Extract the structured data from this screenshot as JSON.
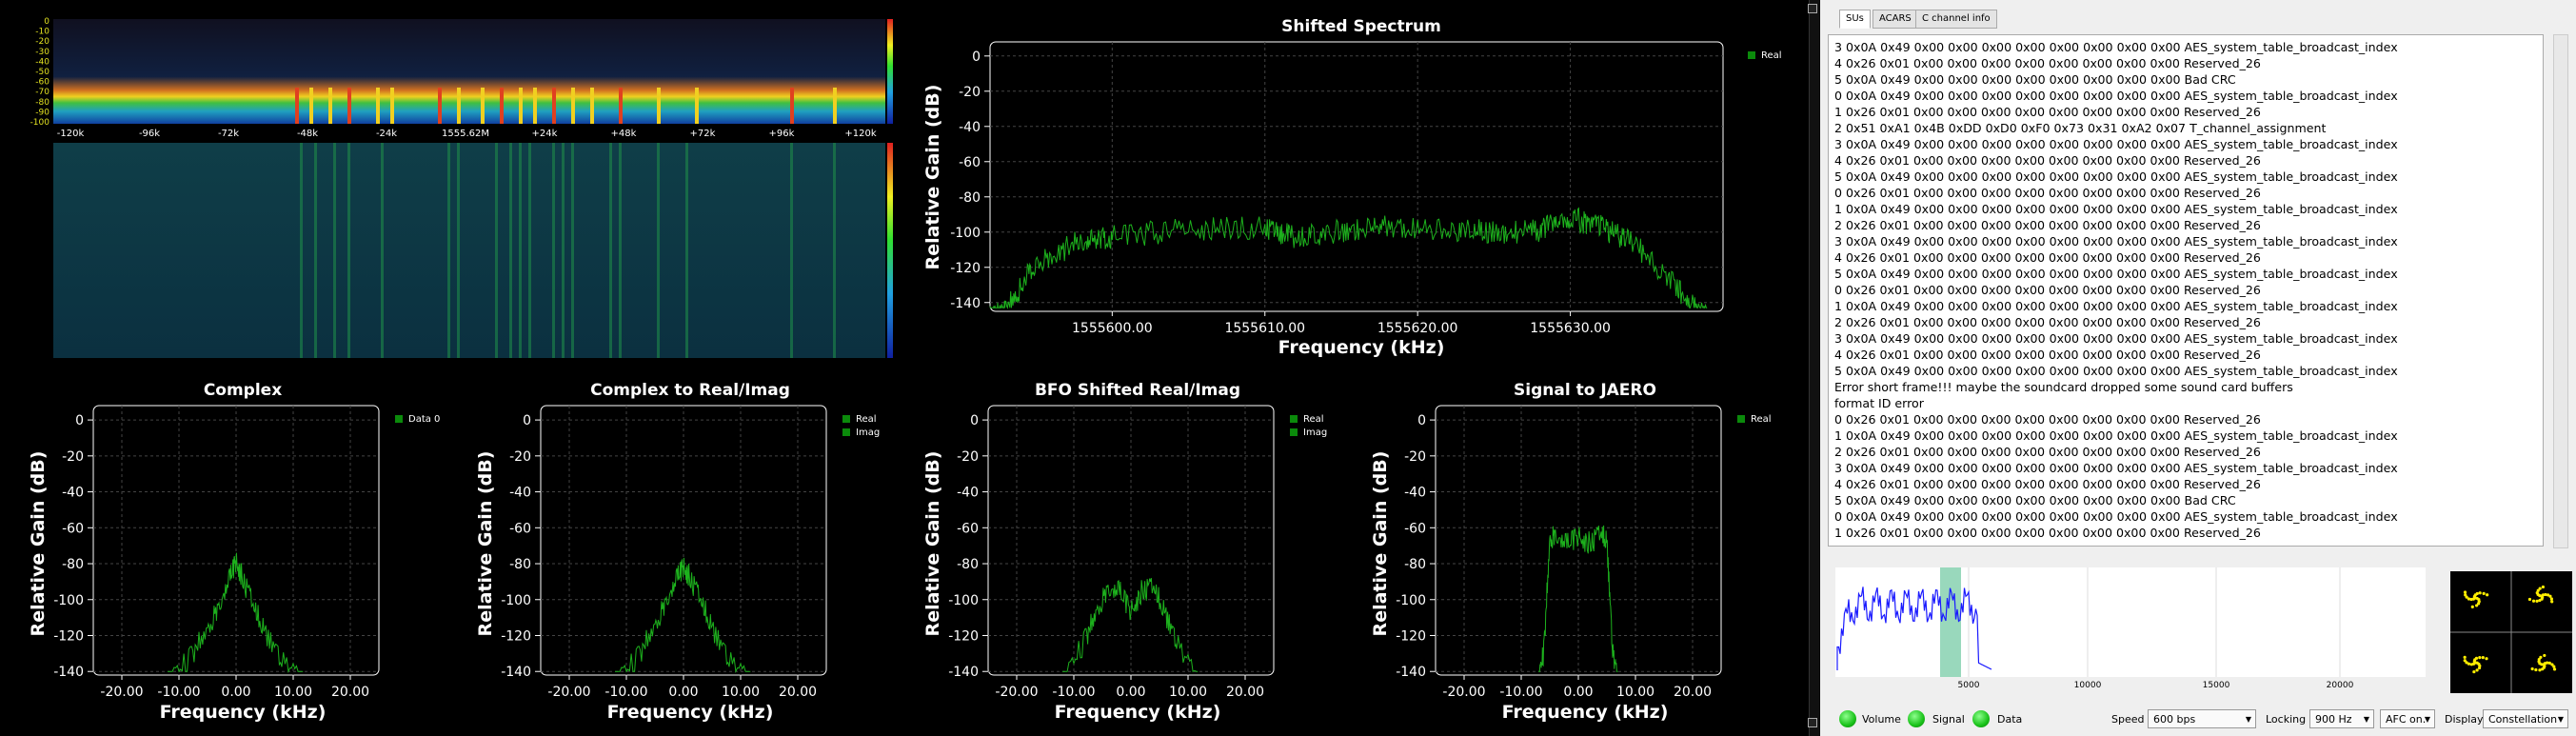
{
  "waterfall": {
    "db_ticks": [
      "0",
      "-10",
      "-20",
      "-30",
      "-40",
      "-50",
      "-60",
      "-70",
      "-80",
      "-90",
      "-100"
    ],
    "freq_ticks": [
      "-120k",
      "-96k",
      "-72k",
      "-48k",
      "-24k",
      "1555.62M",
      "+24k",
      "+48k",
      "+72k",
      "+96k",
      "+120k"
    ]
  },
  "shifted_spectrum": {
    "title": "Shifted Spectrum",
    "ylabel": "Relative Gain (dB)",
    "xlabel": "Frequency (kHz)",
    "legend": "Real",
    "yticks": [
      "0",
      "-20",
      "-40",
      "-60",
      "-80",
      "-100",
      "-120",
      "-140"
    ],
    "xticks": [
      "1555600.00",
      "1555610.00",
      "1555620.00",
      "1555630.00"
    ]
  },
  "small_plots": [
    {
      "title": "Complex",
      "ylabel": "Relative Gain (dB)",
      "xlabel": "Frequency (kHz)",
      "legend": [
        "Data 0"
      ]
    },
    {
      "title": "Complex to Real/Imag",
      "ylabel": "Relative Gain (dB)",
      "xlabel": "Frequency (kHz)",
      "legend": [
        "Real",
        "Imag"
      ]
    },
    {
      "title": "BFO Shifted Real/Imag",
      "ylabel": "Relative Gain (dB)",
      "xlabel": "Frequency (kHz)",
      "legend": [
        "Real",
        "Imag"
      ]
    },
    {
      "title": "Signal to JAERO",
      "ylabel": "Relative Gain (dB)",
      "xlabel": "Frequency (kHz)",
      "legend": [
        "Real"
      ]
    }
  ],
  "small_yticks": [
    "0",
    "-20",
    "-40",
    "-60",
    "-80",
    "-100",
    "-120",
    "-140"
  ],
  "small_xticks": [
    "-20.00",
    "-10.00",
    "0.00",
    "10.00",
    "20.00"
  ],
  "chart_data": [
    {
      "type": "line",
      "title": "Shifted Spectrum",
      "xlabel": "Frequency (kHz)",
      "ylabel": "Relative Gain (dB)",
      "xlim": [
        1555592,
        1555640
      ],
      "ylim": [
        -145,
        8
      ],
      "series": [
        {
          "name": "Real",
          "x": [
            1555592,
            1555593,
            1555595,
            1555598,
            1555600,
            1555605,
            1555610,
            1555612,
            1555615,
            1555618,
            1555622,
            1555625,
            1555628,
            1555630,
            1555632,
            1555634,
            1555637,
            1555639
          ],
          "values": [
            -142,
            -138,
            -110,
            -98,
            -95,
            -92,
            -90,
            -96,
            -92,
            -90,
            -91,
            -93,
            -92,
            -85,
            -90,
            -98,
            -125,
            -142
          ]
        }
      ]
    },
    {
      "type": "line",
      "title": "Complex",
      "xlim": [
        -25,
        25
      ],
      "ylim": [
        -142,
        8
      ],
      "series": [
        {
          "name": "Data 0",
          "x": [
            -12,
            -8,
            -5,
            -3,
            -1,
            0,
            1,
            3,
            5,
            8,
            12
          ],
          "values": [
            -140,
            -125,
            -110,
            -95,
            -80,
            -72,
            -80,
            -95,
            -110,
            -125,
            -140
          ]
        }
      ]
    },
    {
      "type": "line",
      "title": "Complex to Real/Imag",
      "xlim": [
        -25,
        25
      ],
      "ylim": [
        -142,
        8
      ],
      "series": [
        {
          "name": "Real",
          "x": [
            -12,
            -8,
            -5,
            -3,
            -1,
            0,
            1,
            3,
            5,
            8,
            12
          ],
          "values": [
            -140,
            -125,
            -108,
            -92,
            -80,
            -75,
            -80,
            -92,
            -108,
            -125,
            -140
          ]
        }
      ]
    },
    {
      "type": "line",
      "title": "BFO Shifted Real/Imag",
      "xlim": [
        -25,
        25
      ],
      "ylim": [
        -142,
        8
      ],
      "series": [
        {
          "name": "Real",
          "x": [
            -12,
            -8,
            -6,
            -4,
            -2,
            0,
            2,
            4,
            6,
            8,
            12
          ],
          "values": [
            -140,
            -115,
            -100,
            -85,
            -88,
            -100,
            -88,
            -85,
            -100,
            -115,
            -140
          ]
        }
      ]
    },
    {
      "type": "line",
      "title": "Signal to JAERO",
      "xlim": [
        -25,
        25
      ],
      "ylim": [
        -142,
        8
      ],
      "series": [
        {
          "name": "Real",
          "x": [
            -7,
            -6,
            -5,
            -4,
            -2,
            0,
            2,
            4,
            5,
            6,
            7
          ],
          "values": [
            -140,
            -120,
            -60,
            -55,
            -62,
            -58,
            -62,
            -55,
            -60,
            -120,
            -140
          ]
        }
      ]
    }
  ],
  "tabs": [
    "SUs",
    "ACARS",
    "C channel info"
  ],
  "log_lines": [
    "3 0x0A 0x49 0x00 0x00 0x00 0x00 0x00 0x00 0x00 0x00 AES_system_table_broadcast_index",
    "4 0x26 0x01 0x00 0x00 0x00 0x00 0x00 0x00 0x00 0x00 Reserved_26",
    "5 0x0A 0x49 0x00 0x00 0x00 0x00 0x00 0x00 0x00 0x00 Bad CRC",
    "0 0x0A 0x49 0x00 0x00 0x00 0x00 0x00 0x00 0x00 0x00 AES_system_table_broadcast_index",
    "1 0x26 0x01 0x00 0x00 0x00 0x00 0x00 0x00 0x00 0x00 Reserved_26",
    "2 0x51 0xA1 0x4B 0xDD 0xD0 0xF0 0x73 0x31 0xA2 0x07 T_channel_assignment",
    "3 0x0A 0x49 0x00 0x00 0x00 0x00 0x00 0x00 0x00 0x00 AES_system_table_broadcast_index",
    "4 0x26 0x01 0x00 0x00 0x00 0x00 0x00 0x00 0x00 0x00 Reserved_26",
    "5 0x0A 0x49 0x00 0x00 0x00 0x00 0x00 0x00 0x00 0x00 AES_system_table_broadcast_index",
    "0 0x26 0x01 0x00 0x00 0x00 0x00 0x00 0x00 0x00 0x00 Reserved_26",
    "1 0x0A 0x49 0x00 0x00 0x00 0x00 0x00 0x00 0x00 0x00 AES_system_table_broadcast_index",
    "2 0x26 0x01 0x00 0x00 0x00 0x00 0x00 0x00 0x00 0x00 Reserved_26",
    "3 0x0A 0x49 0x00 0x00 0x00 0x00 0x00 0x00 0x00 0x00 AES_system_table_broadcast_index",
    "4 0x26 0x01 0x00 0x00 0x00 0x00 0x00 0x00 0x00 0x00 Reserved_26",
    "5 0x0A 0x49 0x00 0x00 0x00 0x00 0x00 0x00 0x00 0x00 AES_system_table_broadcast_index",
    "0 0x26 0x01 0x00 0x00 0x00 0x00 0x00 0x00 0x00 0x00 Reserved_26",
    "1 0x0A 0x49 0x00 0x00 0x00 0x00 0x00 0x00 0x00 0x00 AES_system_table_broadcast_index",
    "2 0x26 0x01 0x00 0x00 0x00 0x00 0x00 0x00 0x00 0x00 Reserved_26",
    "3 0x0A 0x49 0x00 0x00 0x00 0x00 0x00 0x00 0x00 0x00 AES_system_table_broadcast_index",
    "4 0x26 0x01 0x00 0x00 0x00 0x00 0x00 0x00 0x00 0x00 Reserved_26",
    "5 0x0A 0x49 0x00 0x00 0x00 0x00 0x00 0x00 0x00 0x00 AES_system_table_broadcast_index",
    "Error short frame!!! maybe the soundcard dropped some sound card buffers",
    "format ID error",
    "0 0x26 0x01 0x00 0x00 0x00 0x00 0x00 0x00 0x00 0x00 Reserved_26",
    "1 0x0A 0x49 0x00 0x00 0x00 0x00 0x00 0x00 0x00 0x00 AES_system_table_broadcast_index",
    "2 0x26 0x01 0x00 0x00 0x00 0x00 0x00 0x00 0x00 0x00 Reserved_26",
    "3 0x0A 0x49 0x00 0x00 0x00 0x00 0x00 0x00 0x00 0x00 AES_system_table_broadcast_index",
    "4 0x26 0x01 0x00 0x00 0x00 0x00 0x00 0x00 0x00 0x00 Reserved_26",
    "5 0x0A 0x49 0x00 0x00 0x00 0x00 0x00 0x00 0x00 0x00 Bad CRC",
    "0 0x0A 0x49 0x00 0x00 0x00 0x00 0x00 0x00 0x00 0x00 AES_system_table_broadcast_index",
    "1 0x26 0x01 0x00 0x00 0x00 0x00 0x00 0x00 0x00 0x00 Reserved_26"
  ],
  "mini_spectrum": {
    "xticks": [
      "5000",
      "10000",
      "15000",
      "20000"
    ]
  },
  "status": {
    "volume_label": "Volume",
    "signal_label": "Signal",
    "data_label": "Data",
    "speed_label": "Speed",
    "speed_value": "600 bps",
    "locking_label": "Locking",
    "locking_value": "900 Hz",
    "afc_value": "AFC on.",
    "display_label": "Display",
    "display_value": "Constellation"
  },
  "colors": {
    "trace": "#1db11d",
    "mini_trace": "#1a1aff",
    "led": "#19c219"
  }
}
